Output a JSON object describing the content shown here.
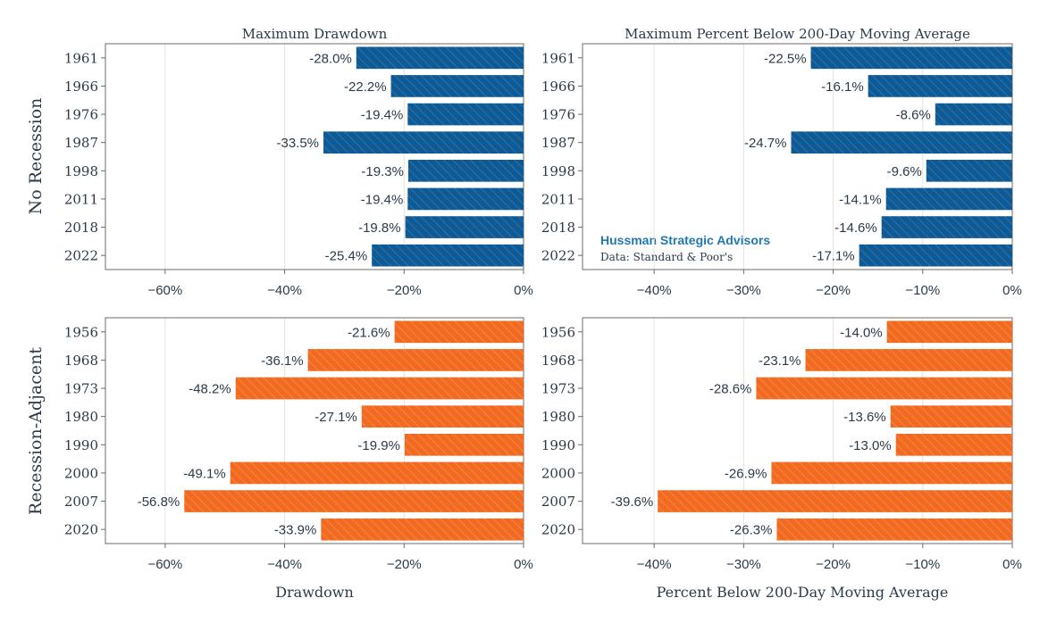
{
  "colors": {
    "blue": "#0f5a94",
    "orange": "#f26a21",
    "text": "#2b3a4a",
    "grid": "#e3e3e3",
    "brand": "#1f78b4"
  },
  "rows": {
    "top_label": "No Recession",
    "bottom_label": "Recession-Adjacent"
  },
  "x_labels": {
    "left": "Drawdown",
    "right": "Percent Below 200-Day Moving Average"
  },
  "annotation": {
    "brand": "Hussman Strategic Advisors",
    "source": "Data: Standard & Poor's"
  },
  "chart_data": [
    {
      "type": "bar",
      "orientation": "horizontal",
      "title": "Maximum Drawdown",
      "xlabel": "",
      "color": "blue",
      "categories": [
        "1961",
        "1966",
        "1976",
        "1987",
        "1998",
        "2011",
        "2018",
        "2022"
      ],
      "values": [
        -28.0,
        -22.2,
        -19.4,
        -33.5,
        -19.3,
        -19.4,
        -19.8,
        -25.4
      ],
      "labels": [
        "-28.0%",
        "-22.2%",
        "-19.4%",
        "-33.5%",
        "-19.3%",
        "-19.4%",
        "-19.8%",
        "-25.4%"
      ],
      "xlim": [
        -70,
        0
      ],
      "ticks": [
        -60,
        -40,
        -20,
        0
      ],
      "tick_labels": [
        "−60%",
        "−40%",
        "−20%",
        "0%"
      ]
    },
    {
      "type": "bar",
      "orientation": "horizontal",
      "title": "Maximum Percent Below 200-Day Moving Average",
      "xlabel": "",
      "color": "blue",
      "categories": [
        "1961",
        "1966",
        "1976",
        "1987",
        "1998",
        "2011",
        "2018",
        "2022"
      ],
      "values": [
        -22.5,
        -16.1,
        -8.6,
        -24.7,
        -9.6,
        -14.1,
        -14.6,
        -17.1
      ],
      "labels": [
        "-22.5%",
        "-16.1%",
        "-8.6%",
        "-24.7%",
        "-9.6%",
        "-14.1%",
        "-14.6%",
        "-17.1%"
      ],
      "xlim": [
        -48,
        0
      ],
      "ticks": [
        -40,
        -30,
        -20,
        -10,
        0
      ],
      "tick_labels": [
        "−40%",
        "−30%",
        "−20%",
        "−10%",
        "0%"
      ]
    },
    {
      "type": "bar",
      "orientation": "horizontal",
      "title": "",
      "xlabel": "Drawdown",
      "color": "orange",
      "categories": [
        "1956",
        "1968",
        "1973",
        "1980",
        "1990",
        "2000",
        "2007",
        "2020"
      ],
      "values": [
        -21.6,
        -36.1,
        -48.2,
        -27.1,
        -19.9,
        -49.1,
        -56.8,
        -33.9
      ],
      "labels": [
        "-21.6%",
        "-36.1%",
        "-48.2%",
        "-27.1%",
        "-19.9%",
        "-49.1%",
        "-56.8%",
        "-33.9%"
      ],
      "xlim": [
        -70,
        0
      ],
      "ticks": [
        -60,
        -40,
        -20,
        0
      ],
      "tick_labels": [
        "−60%",
        "−40%",
        "−20%",
        "0%"
      ]
    },
    {
      "type": "bar",
      "orientation": "horizontal",
      "title": "",
      "xlabel": "Percent Below 200-Day Moving Average",
      "color": "orange",
      "categories": [
        "1956",
        "1968",
        "1973",
        "1980",
        "1990",
        "2000",
        "2007",
        "2020"
      ],
      "values": [
        -14.0,
        -23.1,
        -28.6,
        -13.6,
        -13.0,
        -26.9,
        -39.6,
        -26.3
      ],
      "labels": [
        "-14.0%",
        "-23.1%",
        "-28.6%",
        "-13.6%",
        "-13.0%",
        "-26.9%",
        "-39.6%",
        "-26.3%"
      ],
      "xlim": [
        -48,
        0
      ],
      "ticks": [
        -40,
        -30,
        -20,
        -10,
        0
      ],
      "tick_labels": [
        "−40%",
        "−30%",
        "−20%",
        "−10%",
        "0%"
      ]
    }
  ]
}
